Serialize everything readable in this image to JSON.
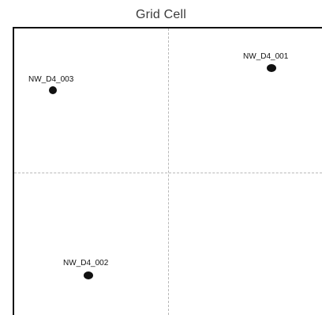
{
  "title": "Grid Cell",
  "points": [
    {
      "id": "p1",
      "label": "NW_D4_001"
    },
    {
      "id": "p2",
      "label": "NW_D4_003"
    },
    {
      "id": "p3",
      "label": "NW_D4_002"
    }
  ],
  "colors": {
    "frame": "#111111",
    "guides": "#b8b8b8",
    "points": "#111111",
    "title": "#3a3a3a"
  }
}
